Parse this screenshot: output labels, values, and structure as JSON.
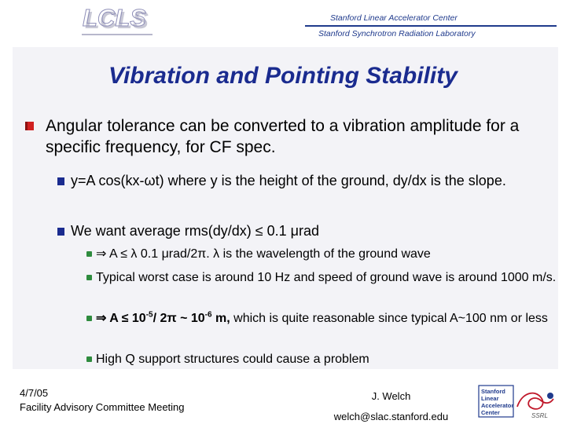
{
  "header": {
    "logo_text": "LCLS",
    "lab_line_1": "Stanford Linear Accelerator Center",
    "lab_line_2": "Stanford Synchrotron Radiation Laboratory"
  },
  "slide": {
    "title": "Vibration and Pointing Stability",
    "bullet_1": "Angular tolerance can be converted to a vibration amplitude for a specific frequency, for CF spec.",
    "sub_1": "y=A cos(kx-ωt) where y is the height of the ground, dy/dx is the slope.",
    "sub_2": "We want average rms(dy/dx) ≤ 0.1 μrad",
    "subsub_1": "⇒ A ≤ λ 0.1 μrad/2π. λ is the wavelength of the ground wave",
    "subsub_2": "Typical worst case is around 10 Hz and speed of ground wave is around 1000 m/s.",
    "subsub_3": {
      "bold_prefix": "⇒ A ≤ 10",
      "bold_exp1": "-5",
      "bold_mid": "/ 2π ~ 10",
      "bold_exp2": "-6",
      "bold_suffix": " m,",
      "rest": " which is quite reasonable since typical A~100 nm or less"
    },
    "subsub_4": "High Q support structures could cause a problem"
  },
  "footer": {
    "date": "4/7/05",
    "meeting": "Facility Advisory Committee Meeting",
    "author": "J. Welch",
    "email": "welch@slac.stanford.edu",
    "logo_lines": [
      "Stanford",
      "Linear",
      "Accelerator",
      "Center"
    ],
    "ssrl_text": "SSRL"
  },
  "colors": {
    "title": "#1a2b8f",
    "level1_bullet": "#d02020",
    "level2_bullet": "#1a2b8f",
    "level3_bullet": "#2e8b3e"
  }
}
